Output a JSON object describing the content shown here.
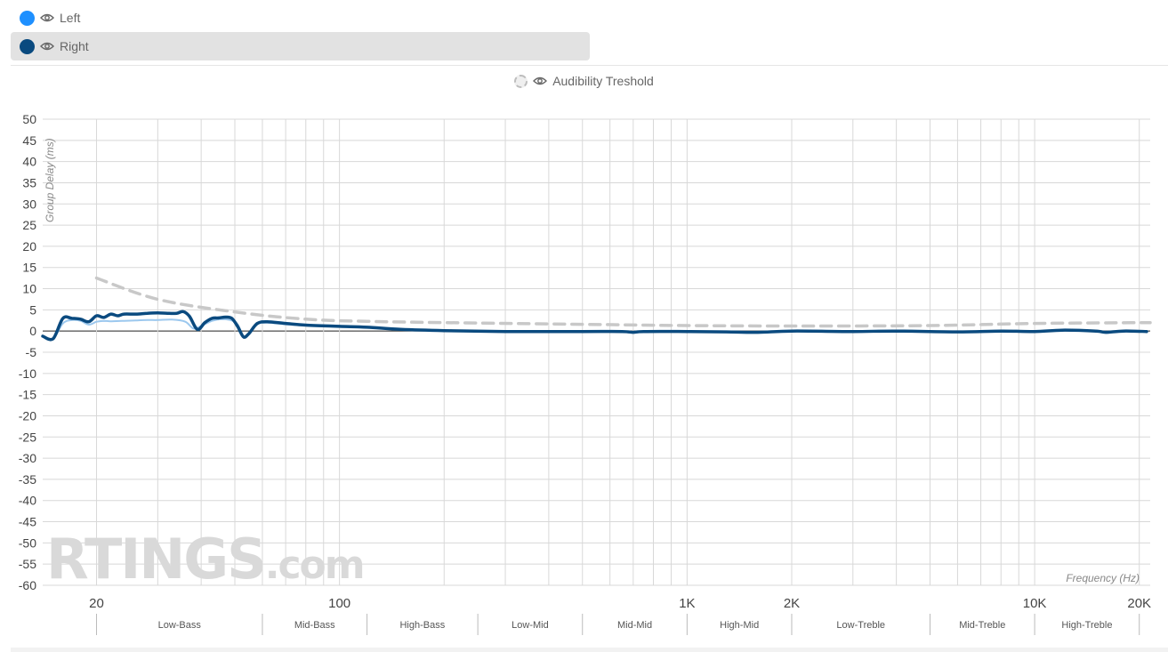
{
  "legend": {
    "items": [
      {
        "label": "Left",
        "color": "#1e90ff"
      },
      {
        "label": "Right",
        "color": "#0a4a7f"
      }
    ],
    "threshold_label": "Audibility Treshold"
  },
  "watermark": {
    "brand": "RTINGS",
    "suffix": ".com"
  },
  "chart_data": {
    "type": "line",
    "xlabel": "Frequency (Hz)",
    "ylabel": "Group Delay (ms)",
    "x_scale": "log",
    "xlim": [
      14,
      21500
    ],
    "ylim": [
      -60,
      50
    ],
    "y_ticks": [
      50,
      45,
      40,
      35,
      30,
      25,
      20,
      15,
      10,
      5,
      0,
      -5,
      -10,
      -15,
      -20,
      -25,
      -30,
      -35,
      -40,
      -45,
      -50,
      -55,
      -60
    ],
    "x_tick_labels": [
      {
        "value": 20,
        "label": "20"
      },
      {
        "value": 100,
        "label": "100"
      },
      {
        "value": 1000,
        "label": "1K"
      },
      {
        "value": 2000,
        "label": "2K"
      },
      {
        "value": 10000,
        "label": "10K"
      },
      {
        "value": 20000,
        "label": "20K"
      }
    ],
    "bands": [
      {
        "label": "Low-Bass",
        "from": 20,
        "to": 60
      },
      {
        "label": "Mid-Bass",
        "from": 60,
        "to": 120
      },
      {
        "label": "High-Bass",
        "from": 120,
        "to": 250
      },
      {
        "label": "Low-Mid",
        "from": 250,
        "to": 500
      },
      {
        "label": "Mid-Mid",
        "from": 500,
        "to": 1000
      },
      {
        "label": "High-Mid",
        "from": 1000,
        "to": 2000
      },
      {
        "label": "Low-Treble",
        "from": 2000,
        "to": 5000
      },
      {
        "label": "Mid-Treble",
        "from": 5000,
        "to": 10000
      },
      {
        "label": "High-Treble",
        "from": 10000,
        "to": 20000
      }
    ],
    "series": [
      {
        "name": "Left",
        "color": "#9cc8ee",
        "points": [
          [
            14,
            -1.2
          ],
          [
            15,
            -1.8
          ],
          [
            16,
            1.8
          ],
          [
            17,
            2.6
          ],
          [
            18,
            2.4
          ],
          [
            19,
            1.5
          ],
          [
            20,
            2.2
          ],
          [
            21,
            2.4
          ],
          [
            22,
            2.3
          ],
          [
            24,
            2.4
          ],
          [
            26,
            2.5
          ],
          [
            28,
            2.6
          ],
          [
            30,
            2.6
          ],
          [
            33,
            2.7
          ],
          [
            36,
            2.2
          ],
          [
            38,
            0.6
          ],
          [
            40,
            1.2
          ],
          [
            43,
            2.4
          ],
          [
            46,
            2.8
          ],
          [
            49,
            2.5
          ],
          [
            51,
            1.5
          ],
          [
            53,
            -1.4
          ],
          [
            55,
            -0.6
          ],
          [
            58,
            1.6
          ],
          [
            62,
            2.0
          ],
          [
            70,
            1.6
          ],
          [
            80,
            1.3
          ],
          [
            100,
            1.0
          ],
          [
            120,
            0.8
          ],
          [
            150,
            0.4
          ],
          [
            200,
            0.1
          ],
          [
            300,
            -0.1
          ],
          [
            500,
            -0.1
          ],
          [
            650,
            -0.1
          ],
          [
            700,
            -0.3
          ],
          [
            750,
            -0.1
          ],
          [
            1000,
            -0.1
          ],
          [
            1300,
            -0.2
          ],
          [
            1600,
            -0.3
          ],
          [
            2000,
            0.0
          ],
          [
            3000,
            -0.1
          ],
          [
            4000,
            0.0
          ],
          [
            6000,
            -0.2
          ],
          [
            8000,
            0.0
          ],
          [
            10000,
            -0.1
          ],
          [
            12000,
            0.2
          ],
          [
            15000,
            0.0
          ],
          [
            16000,
            -0.3
          ],
          [
            18000,
            0.0
          ],
          [
            21000,
            -0.1
          ]
        ]
      },
      {
        "name": "Right",
        "color": "#0a4a7f",
        "points": [
          [
            14,
            -1.2
          ],
          [
            15,
            -1.8
          ],
          [
            16,
            3.0
          ],
          [
            17,
            3.0
          ],
          [
            18,
            2.8
          ],
          [
            19,
            2.2
          ],
          [
            20,
            3.6
          ],
          [
            21,
            3.2
          ],
          [
            22,
            4.0
          ],
          [
            23,
            3.6
          ],
          [
            24,
            4.0
          ],
          [
            26,
            4.0
          ],
          [
            28,
            4.2
          ],
          [
            30,
            4.3
          ],
          [
            32,
            4.2
          ],
          [
            34,
            4.2
          ],
          [
            35.5,
            4.6
          ],
          [
            37,
            3.5
          ],
          [
            39,
            0.4
          ],
          [
            41,
            2.0
          ],
          [
            43,
            3.0
          ],
          [
            45,
            3.1
          ],
          [
            47,
            3.3
          ],
          [
            49,
            3.0
          ],
          [
            51,
            1.0
          ],
          [
            53,
            -1.4
          ],
          [
            55,
            -0.5
          ],
          [
            58,
            1.8
          ],
          [
            62,
            2.2
          ],
          [
            70,
            1.8
          ],
          [
            80,
            1.4
          ],
          [
            100,
            1.1
          ],
          [
            120,
            0.9
          ],
          [
            150,
            0.4
          ],
          [
            200,
            0.1
          ],
          [
            300,
            -0.1
          ],
          [
            500,
            -0.1
          ],
          [
            650,
            -0.1
          ],
          [
            700,
            -0.3
          ],
          [
            750,
            -0.1
          ],
          [
            1000,
            -0.1
          ],
          [
            1300,
            -0.2
          ],
          [
            1600,
            -0.3
          ],
          [
            2000,
            0.0
          ],
          [
            3000,
            -0.1
          ],
          [
            4000,
            0.0
          ],
          [
            6000,
            -0.2
          ],
          [
            8000,
            0.0
          ],
          [
            10000,
            -0.1
          ],
          [
            12000,
            0.2
          ],
          [
            15000,
            0.0
          ],
          [
            16000,
            -0.3
          ],
          [
            18000,
            0.0
          ],
          [
            21000,
            -0.1
          ]
        ]
      },
      {
        "name": "Audibility Treshold",
        "color": "#c8c8c8",
        "dashed": true,
        "points": [
          [
            20,
            12.5
          ],
          [
            30,
            7.5
          ],
          [
            50,
            4.5
          ],
          [
            80,
            2.8
          ],
          [
            120,
            2.3
          ],
          [
            200,
            2.0
          ],
          [
            500,
            1.6
          ],
          [
            1000,
            1.3
          ],
          [
            2000,
            1.2
          ],
          [
            5000,
            1.3
          ],
          [
            10000,
            1.8
          ],
          [
            21500,
            2.0
          ]
        ]
      }
    ]
  }
}
